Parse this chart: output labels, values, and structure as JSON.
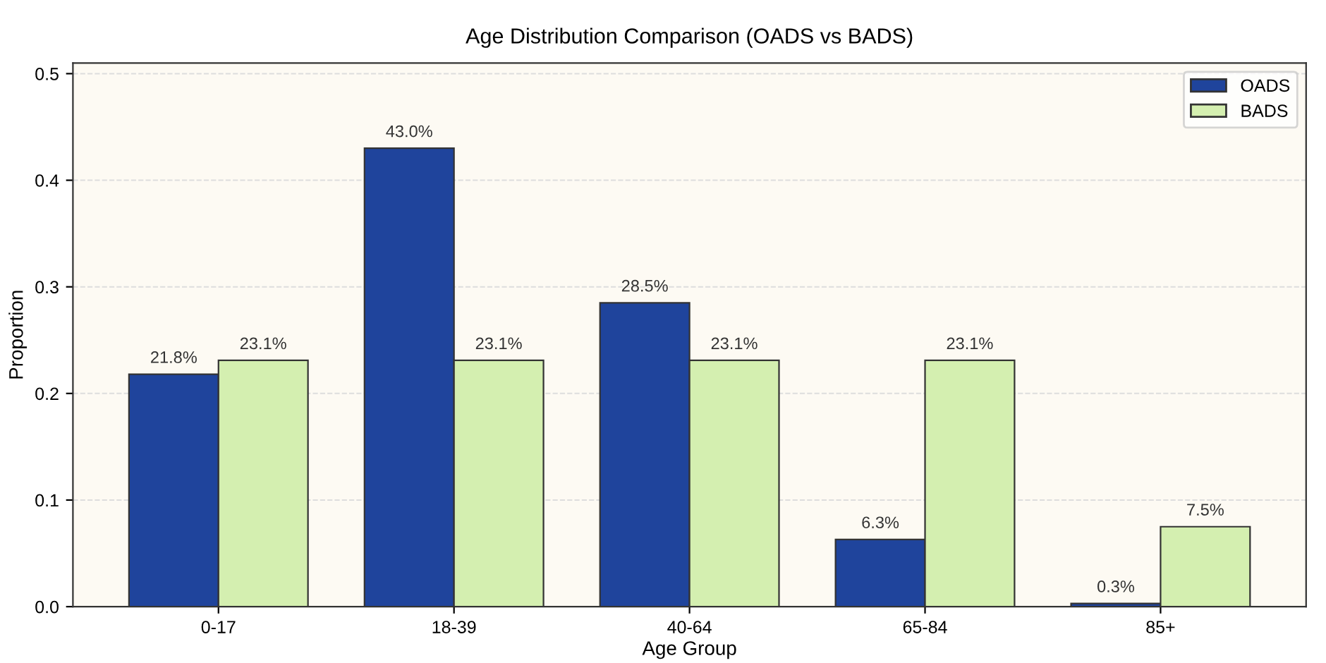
{
  "chart_data": {
    "type": "bar",
    "title": "Age Distribution Comparison (OADS vs BADS)",
    "xlabel": "Age Group",
    "ylabel": "Proportion",
    "categories": [
      "0-17",
      "18-39",
      "40-64",
      "65-84",
      "85+"
    ],
    "series": [
      {
        "name": "OADS",
        "color": "#1f449c",
        "values": [
          0.218,
          0.43,
          0.285,
          0.063,
          0.003
        ],
        "value_labels": [
          "21.8%",
          "43.0%",
          "28.5%",
          "6.3%",
          "0.3%"
        ]
      },
      {
        "name": "BADS",
        "color": "#d4efb0",
        "values": [
          0.231,
          0.231,
          0.231,
          0.231,
          0.075
        ],
        "value_labels": [
          "23.1%",
          "23.1%",
          "23.1%",
          "23.1%",
          "7.5%"
        ]
      }
    ],
    "ylim": [
      0,
      0.51
    ],
    "yticks": [
      {
        "value": 0,
        "label": "0.0"
      },
      0.1,
      0.2,
      0.3,
      0.4,
      0.5
    ],
    "grid": "y",
    "legend": "top right"
  }
}
